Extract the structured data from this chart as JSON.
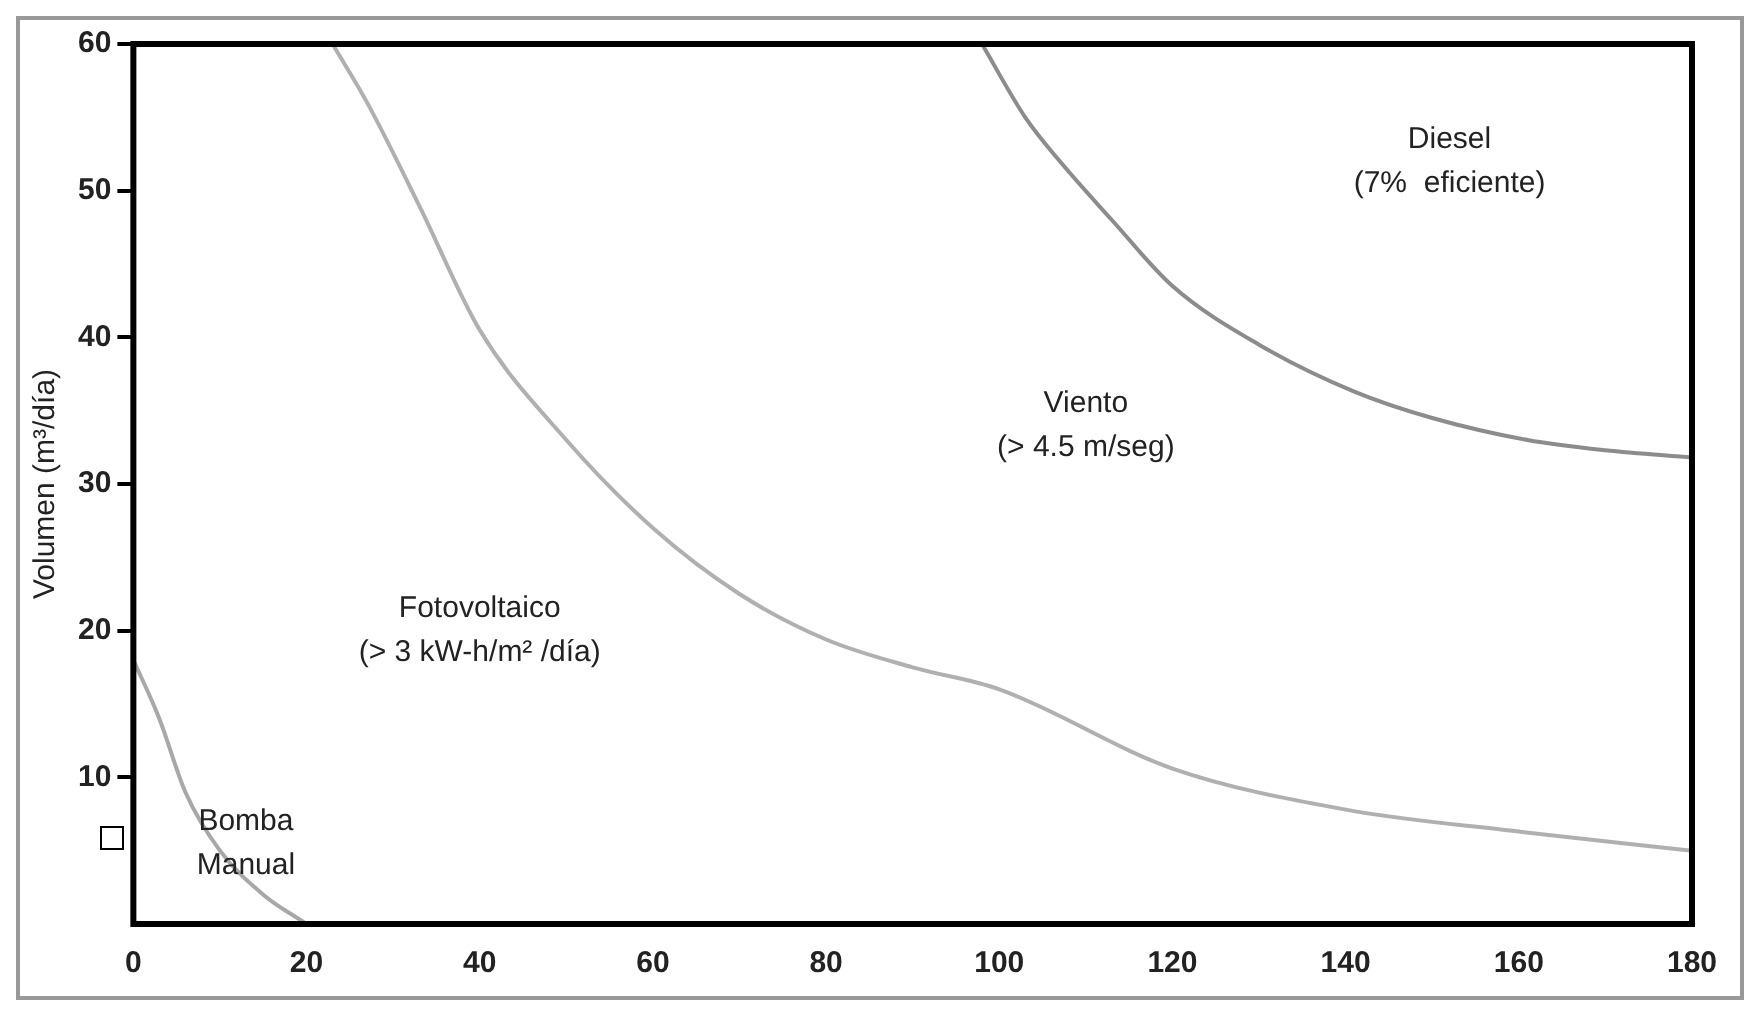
{
  "chart_data": {
    "type": "line",
    "ylabel": "Volumen (m³/día)",
    "xlim": [
      0,
      180
    ],
    "ylim": [
      0,
      60
    ],
    "xticks": [
      0,
      20,
      40,
      60,
      80,
      100,
      120,
      140,
      160,
      180
    ],
    "yticks": [
      10,
      20,
      30,
      40,
      50,
      60
    ],
    "grid": false,
    "legend": false,
    "marker": "none",
    "series": [
      {
        "color": "#a8a8a8",
        "x": [
          0,
          3,
          6,
          10,
          15,
          20
        ],
        "values": [
          18,
          14,
          9,
          5,
          2,
          0
        ]
      },
      {
        "color": "#b0b0b0",
        "x": [
          23,
          27,
          33,
          40,
          50,
          60,
          70,
          80,
          90,
          100,
          120,
          140,
          160,
          180
        ],
        "values": [
          60,
          56,
          49,
          40.5,
          33,
          27,
          22.5,
          19.4,
          17.5,
          16,
          10.6,
          7.8,
          6.3,
          5
        ]
      },
      {
        "color": "#8c8c8c",
        "x": [
          98,
          103,
          107,
          113,
          120,
          130,
          141,
          150,
          161,
          170,
          180
        ],
        "values": [
          60,
          55,
          52,
          48,
          43.5,
          39.5,
          36.3,
          34.5,
          33,
          32.3,
          31.8
        ]
      }
    ],
    "annotations": [
      "Bomba\nManual",
      "Fotovoltaico\n(> 3 kW-h/m² /día)",
      "Viento\n(> 4.5 m/seg)",
      "Diesel\n(7%  eficiente)"
    ]
  }
}
